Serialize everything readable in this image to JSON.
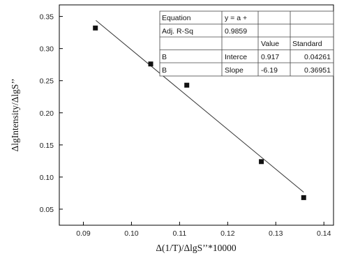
{
  "chart_data": {
    "type": "scatter",
    "xlabel": "Δ(1/T)/ΔlgS’’*10000",
    "ylabel": "ΔlgIntensity/ΔlgS’’",
    "xlim": [
      0.085,
      0.142
    ],
    "ylim": [
      0.025,
      0.368
    ],
    "x_ticks": [
      0.09,
      0.1,
      0.11,
      0.12,
      0.13,
      0.14
    ],
    "x_tick_labels": [
      "0.09",
      "0.10",
      "0.11",
      "0.12",
      "0.13",
      "0.14"
    ],
    "y_ticks": [
      0.05,
      0.1,
      0.15,
      0.2,
      0.25,
      0.3,
      0.35
    ],
    "y_tick_labels": [
      "0.05",
      "0.10",
      "0.15",
      "0.20",
      "0.25",
      "0.30",
      "0.35"
    ],
    "points": [
      {
        "x": 0.0925,
        "y": 0.332
      },
      {
        "x": 0.104,
        "y": 0.276
      },
      {
        "x": 0.1115,
        "y": 0.243
      },
      {
        "x": 0.127,
        "y": 0.124
      },
      {
        "x": 0.1358,
        "y": 0.068
      }
    ],
    "fit": {
      "intercept": 0.917,
      "slope": -6.19,
      "x_range": [
        0.0926,
        0.1358
      ]
    },
    "grid": false,
    "stats_table": {
      "rows": [
        [
          "Equation",
          "y = a +",
          ""
        ],
        [
          "Adj. R-Sq",
          "0.9859",
          ""
        ],
        [
          "",
          "",
          "Value",
          "Standard"
        ],
        [
          "B",
          "Interce",
          "0.917",
          "0.04261"
        ],
        [
          "B",
          "Slope",
          "-6.19",
          "0.36951"
        ]
      ]
    }
  }
}
